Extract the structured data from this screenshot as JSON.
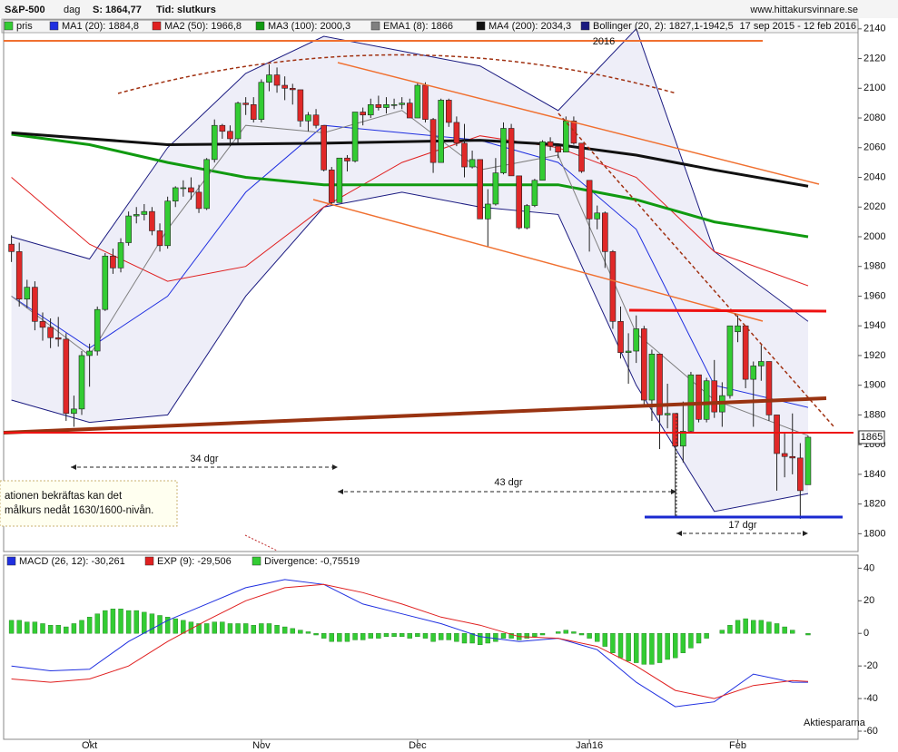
{
  "chart_data": [
    {
      "type": "candlestick",
      "title": "S&P-500",
      "interval": "dag",
      "last": "S: 1864,77",
      "time": "Tid: slutkurs",
      "source": "www.hittakursvinnare.se",
      "period": "17 sep 2015 - 12 feb 2016",
      "x": [
        0,
        1,
        2,
        3,
        4,
        5,
        6,
        7,
        8,
        9,
        10,
        11,
        12,
        13,
        14,
        15,
        16,
        17,
        18,
        19,
        20,
        21,
        22,
        23,
        24,
        25,
        26,
        27,
        28,
        29,
        30,
        31,
        32,
        33,
        34,
        35,
        36,
        37,
        38,
        39,
        40,
        41,
        42,
        43,
        44,
        45,
        46,
        47,
        48,
        49,
        50,
        51,
        52,
        53,
        54,
        55,
        56,
        57,
        58,
        59,
        60,
        61,
        62,
        63,
        64,
        65,
        66,
        67,
        68,
        69,
        70,
        71,
        72,
        73,
        74,
        75,
        76,
        77,
        78,
        79,
        80,
        81,
        82,
        83,
        84,
        85,
        86,
        87,
        88,
        89,
        90,
        91,
        92,
        93,
        94,
        95,
        96,
        97,
        98,
        99,
        100,
        101,
        102
      ],
      "xlim": [
        -1,
        108.4
      ],
      "xticks": [
        {
          "value": 10,
          "label": "Okt"
        },
        {
          "value": 32,
          "label": "Nov"
        },
        {
          "value": 52,
          "label": "Dec"
        },
        {
          "value": 74,
          "label": "Jan16"
        },
        {
          "value": 93,
          "label": "Feb"
        }
      ],
      "ylim": [
        1788,
        2146
      ],
      "yticks": [
        1800,
        1820,
        1840,
        1860,
        1880,
        1900,
        1920,
        1940,
        1960,
        1980,
        2000,
        2020,
        2040,
        2060,
        2080,
        2100,
        2120,
        2140
      ],
      "candles": {
        "name": "pris",
        "color": "#33cc33",
        "down_color": "#e02828",
        "open": [
          1995,
          1990,
          1958,
          1966,
          1943,
          1939,
          1932,
          1931,
          1881,
          1884,
          1920,
          1923,
          1951,
          1987,
          1979,
          1996,
          2014,
          2015,
          2017,
          2004,
          1994,
          2024,
          2033,
          2033,
          2030,
          2019,
          2052,
          2075,
          2071,
          2066,
          2090,
          2089,
          2079,
          2104,
          2109,
          2102,
          2100,
          2099,
          2078,
          2082,
          2075,
          2045,
          2023,
          2053,
          2051,
          2084,
          2082,
          2089,
          2087,
          2089,
          2089,
          2090,
          2080,
          2102,
          2079,
          2050,
          2092,
          2077,
          2063,
          2047,
          2052,
          2012,
          2022,
          2043,
          2073,
          2041,
          2006,
          2021,
          2038,
          2064,
          2061,
          2057,
          2078,
          2063,
          2038,
          2012,
          2016,
          1990,
          1943,
          1922,
          1923,
          1938,
          1890,
          1921,
          1880,
          1881,
          1859,
          1869,
          1907,
          1877,
          1903,
          1882,
          1893,
          1936,
          1940,
          1904,
          1913,
          1916,
          1880,
          1854,
          1852,
          1851,
          1833
        ],
        "high": [
          2001,
          1996,
          1971,
          1970,
          1949,
          1945,
          1946,
          1935,
          1893,
          1923,
          1928,
          1953,
          1989,
          1992,
          1999,
          2017,
          2020,
          2022,
          2020,
          2009,
          2027,
          2034,
          2038,
          2040,
          2035,
          2053,
          2079,
          2076,
          2075,
          2091,
          2094,
          2094,
          2106,
          2116,
          2114,
          2108,
          2103,
          2099,
          2084,
          2086,
          2075,
          2047,
          2053,
          2055,
          2084,
          2087,
          2093,
          2095,
          2094,
          2093,
          2094,
          2093,
          2104,
          2104,
          2080,
          2093,
          2093,
          2081,
          2076,
          2058,
          2052,
          2032,
          2053,
          2077,
          2076,
          2041,
          2022,
          2039,
          2065,
          2067,
          2062,
          2081,
          2081,
          2063,
          2038,
          2021,
          2017,
          1991,
          1953,
          1935,
          1947,
          1940,
          1924,
          1921,
          1901,
          1881,
          1889,
          1909,
          1907,
          1905,
          1917,
          1902,
          1940,
          1947,
          1940,
          1916,
          1927,
          1916,
          1880,
          1868,
          1881,
          1861,
          1866
        ],
        "low": [
          1983,
          1953,
          1952,
          1937,
          1930,
          1925,
          1926,
          1876,
          1872,
          1880,
          1899,
          1920,
          1950,
          1975,
          1976,
          1994,
          2009,
          2011,
          2001,
          1990,
          1992,
          2020,
          2027,
          2025,
          2016,
          2018,
          2050,
          2066,
          2061,
          2063,
          2082,
          2077,
          2077,
          2098,
          2097,
          2092,
          2089,
          2074,
          2071,
          2073,
          2044,
          2022,
          2023,
          2044,
          2050,
          2075,
          2080,
          2085,
          2083,
          2086,
          2086,
          2080,
          2080,
          2077,
          2043,
          2050,
          2074,
          2061,
          2040,
          2046,
          2012,
          1993,
          2021,
          2042,
          2041,
          2005,
          2005,
          2020,
          2038,
          2058,
          2053,
          2057,
          2062,
          2043,
          1990,
          2005,
          1979,
          1938,
          1918,
          1901,
          1915,
          1886,
          1876,
          1857,
          1871,
          1812,
          1848,
          1868,
          1875,
          1875,
          1878,
          1872,
          1891,
          1929,
          1898,
          1872,
          1903,
          1876,
          1829,
          1838,
          1840,
          1810,
          1833
        ],
        "close": [
          1990,
          1958,
          1966,
          1943,
          1939,
          1932,
          1931,
          1881,
          1884,
          1920,
          1923,
          1951,
          1987,
          1979,
          1996,
          2014,
          2015,
          2017,
          2004,
          1994,
          2024,
          2033,
          2033,
          2030,
          2019,
          2052,
          2075,
          2071,
          2066,
          2090,
          2089,
          2079,
          2104,
          2109,
          2102,
          2100,
          2099,
          2078,
          2082,
          2075,
          2045,
          2023,
          2053,
          2051,
          2084,
          2082,
          2089,
          2087,
          2089,
          2089,
          2090,
          2080,
          2102,
          2079,
          2050,
          2092,
          2077,
          2063,
          2047,
          2052,
          2012,
          2022,
          2043,
          2073,
          2041,
          2006,
          2021,
          2038,
          2064,
          2061,
          2057,
          2078,
          2063,
          2044,
          2012,
          2016,
          1990,
          1943,
          1922,
          1923,
          1938,
          1890,
          1921,
          1880,
          1881,
          1859,
          1869,
          1907,
          1877,
          1903,
          1882,
          1893,
          1940,
          1940,
          1904,
          1913,
          1916,
          1880,
          1854,
          1852,
          1851,
          1829,
          1865
        ]
      },
      "band": {
        "name": "Bollinger (20, 2): 1827,1-1942,5",
        "color": "#1a1a80",
        "fill": "#eeeef8",
        "x": [
          0,
          10,
          20,
          30,
          40,
          50,
          60,
          70,
          80,
          90,
          102
        ],
        "upper": [
          2000,
          1985,
          2060,
          2110,
          2135,
          2125,
          2115,
          2085,
          2140,
          1990,
          1943
        ],
        "lower": [
          1890,
          1875,
          1880,
          1960,
          2020,
          2030,
          2020,
          2015,
          1900,
          1815,
          1827
        ]
      },
      "series": [
        {
          "name": "MA1 (20): 1884,8",
          "color": "#1f2fe0",
          "width": 1,
          "x": [
            0,
            10,
            20,
            30,
            40,
            50,
            60,
            70,
            80,
            90,
            102
          ],
          "values": [
            1960,
            1925,
            1960,
            2030,
            2075,
            2070,
            2065,
            2050,
            2005,
            1900,
            1885
          ]
        },
        {
          "name": "MA2 (50): 1966,8",
          "color": "#e02020",
          "width": 1,
          "x": [
            0,
            10,
            20,
            30,
            40,
            50,
            60,
            70,
            80,
            90,
            102
          ],
          "values": [
            2040,
            1995,
            1970,
            1980,
            2020,
            2050,
            2068,
            2060,
            2040,
            1990,
            1967
          ]
        },
        {
          "name": "MA3 (100): 2000,3",
          "color": "#109a10",
          "width": 3,
          "x": [
            0,
            10,
            20,
            30,
            40,
            50,
            60,
            70,
            80,
            90,
            102
          ],
          "values": [
            2069,
            2062,
            2050,
            2040,
            2035,
            2035,
            2035,
            2035,
            2025,
            2010,
            2000
          ]
        },
        {
          "name": "EMA1 (8): 1866",
          "color": "#808080",
          "width": 1,
          "x": [
            0,
            10,
            20,
            30,
            40,
            50,
            60,
            70,
            80,
            90,
            102
          ],
          "values": [
            1960,
            1920,
            2005,
            2075,
            2070,
            2085,
            2045,
            2055,
            1935,
            1890,
            1866
          ]
        },
        {
          "name": "MA4 (200): 2034,3",
          "color": "#111111",
          "width": 3,
          "x": [
            0,
            20,
            40,
            60,
            70,
            80,
            90,
            102
          ],
          "values": [
            2070,
            2062,
            2063,
            2065,
            2062,
            2055,
            2045,
            2034
          ]
        }
      ],
      "annotations": [
        "2016",
        "34 dgr",
        "43 dgr",
        "17 dgr",
        "ationen bekräftas kan det",
        "målkurs nedåt 1630/1600-nivån."
      ]
    },
    {
      "type": "macd",
      "ylim": [
        -65,
        48
      ],
      "yticks": [
        -60,
        -40,
        -20,
        0,
        20,
        40
      ],
      "series": [
        {
          "name": "MACD (26, 12): -30,261",
          "color": "#1f2fe0",
          "kind": "line",
          "x": [
            0,
            5,
            10,
            15,
            20,
            25,
            30,
            35,
            40,
            45,
            50,
            55,
            60,
            65,
            70,
            75,
            80,
            85,
            90,
            95,
            100,
            102
          ],
          "values": [
            -20,
            -23,
            -22,
            -5,
            8,
            18,
            28,
            33,
            30,
            18,
            12,
            6,
            -2,
            -5,
            -3,
            -10,
            -30,
            -45,
            -42,
            -25,
            -30,
            -30
          ]
        },
        {
          "name": "EXP (9): -29,506",
          "color": "#e02020",
          "kind": "line",
          "x": [
            0,
            5,
            10,
            15,
            20,
            25,
            30,
            35,
            40,
            45,
            50,
            55,
            60,
            65,
            70,
            75,
            80,
            85,
            90,
            95,
            100,
            102
          ],
          "values": [
            -28,
            -30,
            -28,
            -20,
            -5,
            8,
            20,
            28,
            30,
            25,
            18,
            10,
            5,
            -2,
            -3,
            -8,
            -20,
            -35,
            -40,
            -32,
            -29,
            -29.5
          ]
        },
        {
          "name": "Divergence: -0,75519",
          "color": "#33cc33",
          "kind": "bar",
          "values": [
            8,
            8,
            7,
            7,
            6,
            5,
            5,
            4,
            6,
            8,
            10,
            12,
            14,
            15,
            15,
            14,
            14,
            13,
            12,
            11,
            10,
            9,
            8,
            7,
            6,
            6,
            7,
            7,
            6,
            6,
            6,
            5,
            6,
            6,
            5,
            4,
            3,
            2,
            1,
            -1,
            -3,
            -5,
            -5,
            -5,
            -4,
            -4,
            -3,
            -3,
            -2,
            -2,
            -2,
            -3,
            -2,
            -3,
            -5,
            -4,
            -4,
            -5,
            -6,
            -6,
            -7,
            -6,
            -5,
            -3,
            -3,
            -4,
            -3,
            -2,
            -1,
            0,
            1,
            2,
            1,
            -1,
            -3,
            -5,
            -8,
            -12,
            -15,
            -17,
            -18,
            -19,
            -19,
            -18,
            -16,
            -15,
            -12,
            -9,
            -6,
            -3,
            0,
            2,
            5,
            8,
            9,
            8,
            8,
            7,
            6,
            4,
            2,
            0,
            -1
          ]
        }
      ],
      "credit": "Aktiespararna"
    }
  ]
}
